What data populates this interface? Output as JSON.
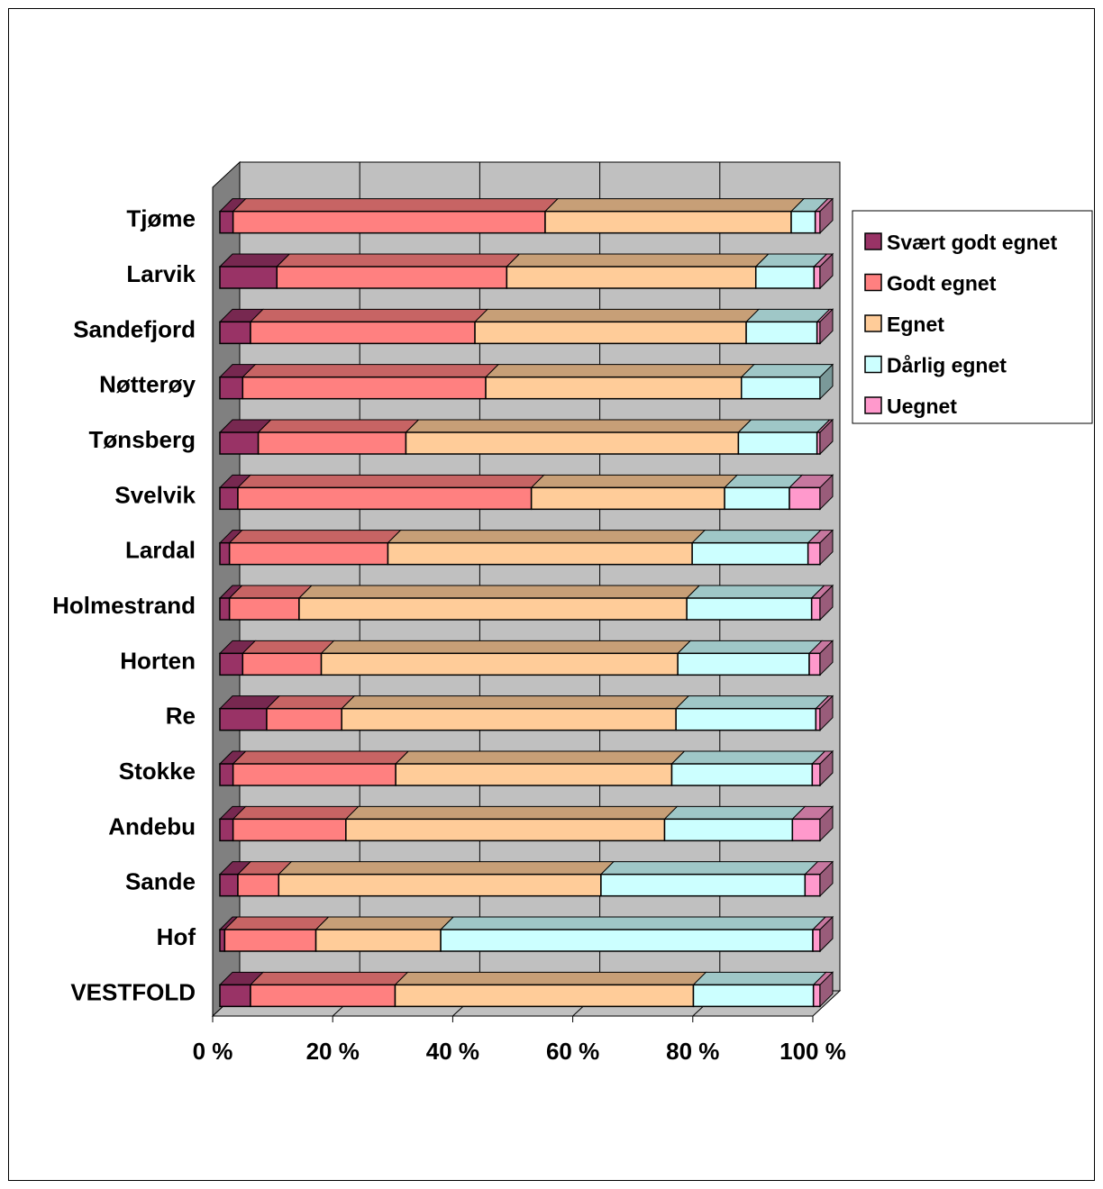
{
  "chart_data": {
    "type": "bar",
    "orientation": "horizontal",
    "stacked": "percent",
    "three_d": true,
    "title": "",
    "xlabel": "",
    "ylabel": "",
    "xlim": [
      0,
      100
    ],
    "x_ticks": [
      "0 %",
      "20 %",
      "40 %",
      "60 %",
      "80 %",
      "100 %"
    ],
    "grid": true,
    "legend_position": "right",
    "categories": [
      "Tjøme",
      "Larvik",
      "Sandefjord",
      "Nøtterøy",
      "Tønsberg",
      "Svelvik",
      "Lardal",
      "Holmestrand",
      "Horten",
      "Re",
      "Stokke",
      "Andebu",
      "Sande",
      "Hof",
      "VESTFOLD"
    ],
    "series": [
      {
        "name": "Svært godt egnet",
        "color": "#993366",
        "values": [
          2.2,
          9.5,
          5.1,
          3.8,
          6.4,
          3.0,
          1.6,
          1.6,
          3.8,
          7.8,
          2.2,
          2.2,
          3.0,
          0.8,
          5.1
        ]
      },
      {
        "name": "Godt egnet",
        "color": "#FF8080",
        "values": [
          52.0,
          38.3,
          37.4,
          40.5,
          24.6,
          48.9,
          26.4,
          11.6,
          13.1,
          12.5,
          27.1,
          18.8,
          6.8,
          15.2,
          24.1
        ]
      },
      {
        "name": "Egnet",
        "color": "#FFCC99",
        "values": [
          41.0,
          41.5,
          45.2,
          42.6,
          55.4,
          32.2,
          50.7,
          64.6,
          59.4,
          55.7,
          46.0,
          53.1,
          53.7,
          20.8,
          49.7
        ]
      },
      {
        "name": "Dårlig egnet",
        "color": "#CCFFFF",
        "values": [
          4.0,
          9.7,
          11.8,
          13.1,
          13.1,
          10.8,
          19.3,
          20.8,
          21.9,
          23.3,
          23.4,
          21.3,
          34.0,
          62.0,
          20.0
        ]
      },
      {
        "name": "Uegnet",
        "color": "#FF99CC",
        "values": [
          0.8,
          1.0,
          0.5,
          0.0,
          0.5,
          5.1,
          2.0,
          1.4,
          1.8,
          0.7,
          1.3,
          4.6,
          2.5,
          1.2,
          1.1
        ]
      }
    ]
  }
}
